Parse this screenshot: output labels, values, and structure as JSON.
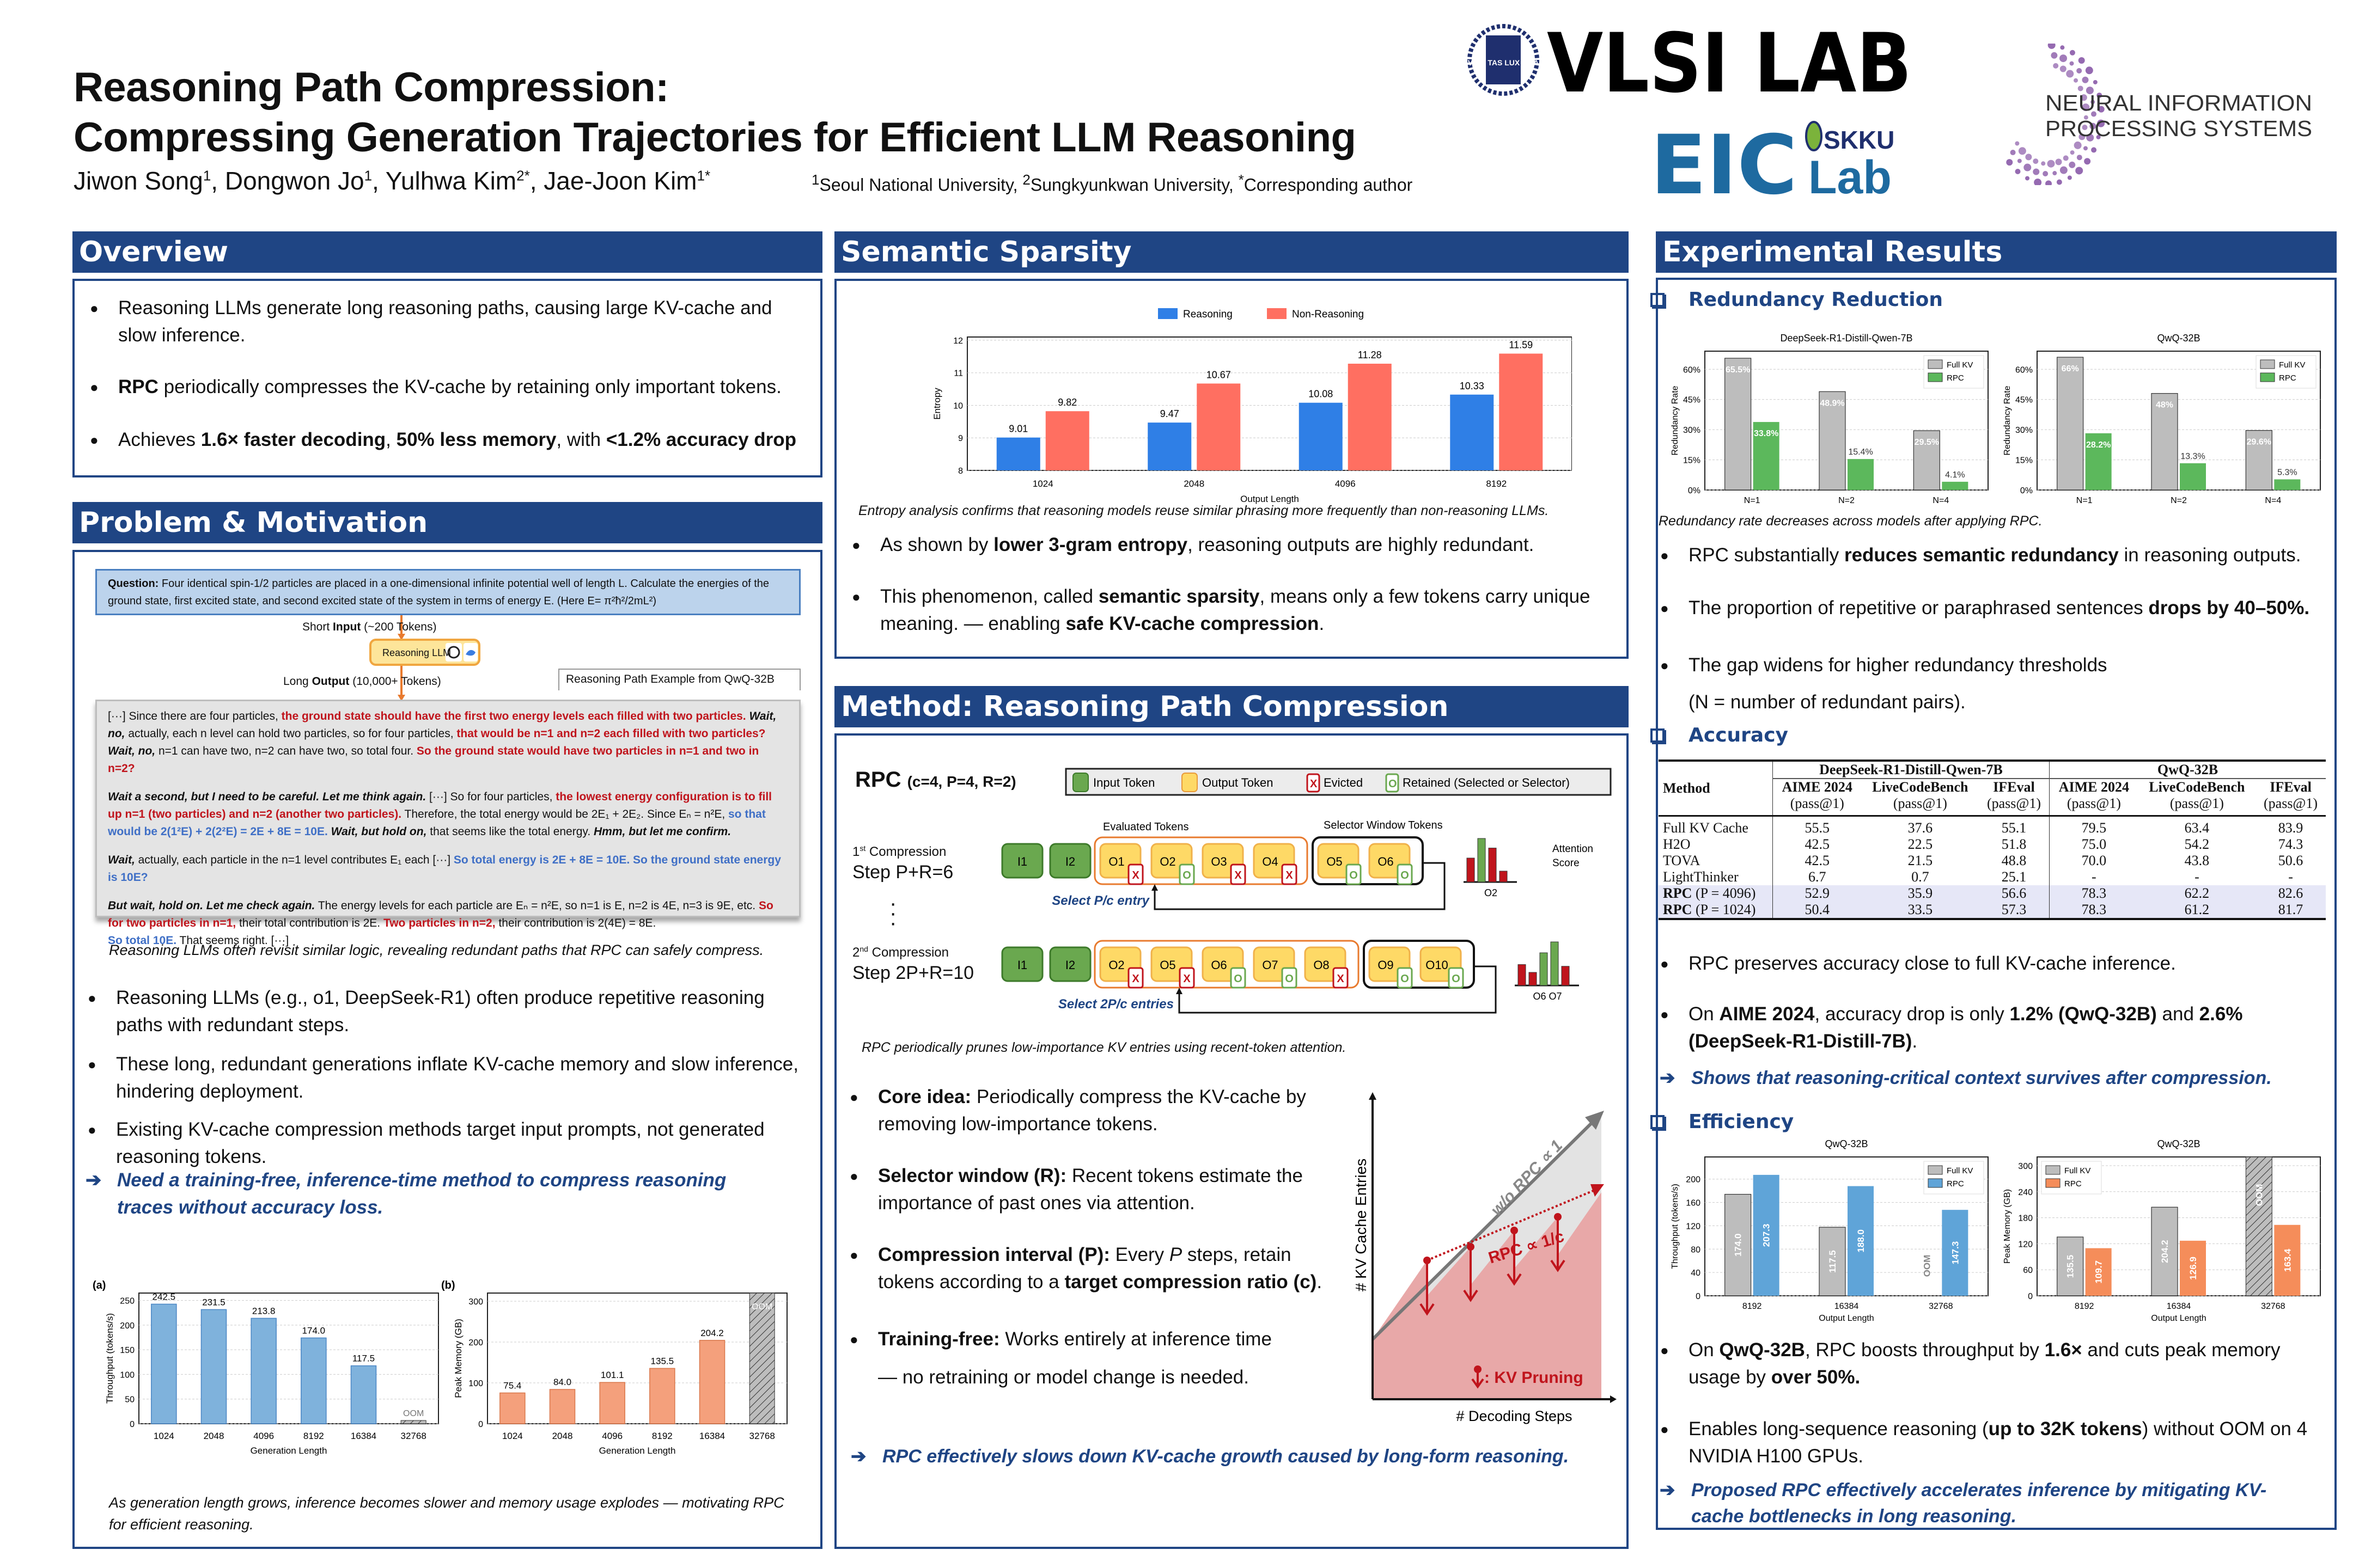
{
  "header": {
    "title_line1": "Reasoning Path Compression:",
    "title_line2": "Compressing Generation Trajectories for Efficient LLM Reasoning",
    "authors": [
      {
        "name": "Jiwon Song",
        "sup": "1"
      },
      {
        "name": "Dongwon Jo",
        "sup": "1"
      },
      {
        "name": "Yulhwa Kim",
        "sup": "2*"
      },
      {
        "name": "Jae-Joon Kim",
        "sup": "1*"
      }
    ],
    "affiliations": [
      {
        "sup": "1",
        "text": "Seoul National University, "
      },
      {
        "sup": "2",
        "text": "Sungkyunkwan University, "
      },
      {
        "sup": "*",
        "text": "Corresponding author"
      }
    ],
    "logos": {
      "vlsi": "VLSI LAB",
      "vlsi_seal": "VERI TAS LUX MEA",
      "eic": "EIC",
      "eic_sub1": "SKKU",
      "eic_sub2": "Lab",
      "neurips_line1": "NEURAL INFORMATION",
      "neurips_line2": "PROCESSING SYSTEMS"
    }
  },
  "overview": {
    "title": "Overview",
    "bullets": [
      {
        "pre": "Reasoning LLMs generate long reasoning paths, causing large KV-cache and slow inference."
      },
      {
        "bold": "RPC",
        "post": " periodically compresses the KV-cache by retaining only important tokens."
      },
      {
        "pre": "Achieves ",
        "b1": "1.6× faster decoding",
        "mid1": ", ",
        "b2": "50% less memory",
        "mid2": ", with ",
        "b3": "<1.2% accuracy drop"
      }
    ]
  },
  "problem": {
    "title": "Problem & Motivation",
    "question_label": "Question:",
    "question": " Four identical spin-1/2 particles are placed in a one-dimensional infinite potential well of length L. Calculate the energies of the ground state, first excited state, and second excited state of the system in terms of energy E. (Here E= π²ħ²/2mL²)",
    "short_input_pre": "Short ",
    "short_input_bold": "Input",
    "short_input_post": " (~200 Tokens)",
    "llm_label": "Reasoning LLM",
    "long_output_pre": "Long ",
    "long_output_bold": "Output",
    "long_output_post": " (10,000+ Tokens)",
    "example_label": "Reasoning Path Example from QwQ-32B",
    "para1": [
      {
        "t": "[···] Since there are four particles, ",
        "s": "n"
      },
      {
        "t": "the ground state should have the first two energy levels each filled with two particles.",
        "s": "r"
      },
      {
        "t": " Wait, no,",
        "s": "bi"
      },
      {
        "t": " actually, each n level can hold two particles, so for four particles, ",
        "s": "n"
      },
      {
        "t": "that would be n=1 and n=2 each filled with two particles?",
        "s": "r"
      },
      {
        "t": " Wait, no,",
        "s": "bi"
      },
      {
        "t": " n=1 can have two, n=2 can have two, so total four. ",
        "s": "n"
      },
      {
        "t": "So the ground state would have two particles in n=1 and two in n=2?",
        "s": "r"
      }
    ],
    "para2": [
      {
        "t": "Wait a second, but I need to be careful. Let me think again.",
        "s": "bi"
      },
      {
        "t": " [···] So for four particles, ",
        "s": "n"
      },
      {
        "t": "the lowest energy configuration is to fill up n=1 (two particles) and n=2 (another two particles).",
        "s": "r"
      },
      {
        "t": " Therefore, the total energy would be 2E₁ + 2E₂. Since Eₙ = n²E, ",
        "s": "n"
      },
      {
        "t": "so that would be 2(1²E) + 2(2²E) = 2E + 8E = 10E.",
        "s": "b"
      },
      {
        "t": " Wait, but hold on,",
        "s": "bi"
      },
      {
        "t": " that seems like the total energy. ",
        "s": "n"
      },
      {
        "t": "Hmm, but let me confirm.",
        "s": "bi"
      }
    ],
    "para3": [
      {
        "t": "Wait,",
        "s": "bi"
      },
      {
        "t": " actually, each particle in the n=1 level contributes E₁ each [···] ",
        "s": "n"
      },
      {
        "t": "So total energy is 2E + 8E = 10E. So the ground state energy is 10E?",
        "s": "b"
      }
    ],
    "para4": [
      {
        "t": "But wait, hold on. Let me check again.",
        "s": "bi"
      },
      {
        "t": " The energy levels for each particle are Eₙ = n²E, so n=1 is E, n=2 is 4E, n=3 is 9E, etc. ",
        "s": "n"
      },
      {
        "t": "So for two particles in n=1,",
        "s": "r"
      },
      {
        "t": " their total contribution is 2E. ",
        "s": "n"
      },
      {
        "t": "Two particles in n=2,",
        "s": "r"
      },
      {
        "t": " their contribution is 2(4E) = 8E.",
        "s": "n"
      }
    ],
    "para5": [
      {
        "t": "So total 10E.",
        "s": "b"
      },
      {
        "t": " That seems right. [···]",
        "s": "n"
      }
    ],
    "figure_caption": "Reasoning LLMs often revisit similar logic, revealing redundant paths that RPC can safely compress.",
    "bullets": [
      "Reasoning LLMs (e.g., o1, DeepSeek-R1) often produce repetitive reasoning paths with redundant steps.",
      "These long, redundant generations inflate KV-cache memory and slow inference, hindering deployment.",
      "Existing KV-cache compression methods target input prompts, not generated reasoning tokens."
    ],
    "conclusion": "Need a training-free, inference-time method to compress reasoning traces without accuracy loss.",
    "bottom_caption": "As generation length grows, inference becomes slower and memory usage explodes — motivating RPC for efficient reasoning."
  },
  "semantic": {
    "title": "Semantic Sparsity",
    "caption": "Entropy analysis confirms that reasoning models reuse similar phrasing more frequently than non-reasoning LLMs.",
    "b1_pre": "As shown by ",
    "b1_bold": "lower 3-gram entropy",
    "b1_post": ", reasoning outputs are highly redundant.",
    "b2_pre": "This phenomenon, called ",
    "b2_bold": "semantic sparsity",
    "b2_mid": ", means only a few tokens carry unique meaning. — enabling ",
    "b2_bold2": "safe KV-cache compression",
    "b2_post": "."
  },
  "method": {
    "title": "Method: Reasoning Path Compression",
    "rpc_label": "RPC",
    "rpc_params": "(c=4, P=4, R=2)",
    "legend": {
      "input": "Input Token",
      "output": "Output Token",
      "evicted": "Evicted",
      "retained": "Retained (Selected or Selector)"
    },
    "evaluated_label": "Evaluated Tokens",
    "selector_label": "Selector Window Tokens",
    "attention_label1": "Attention",
    "attention_label2": "Score",
    "step1_sup": "st",
    "step1_line1": "1",
    "step1_line1b": " Compression",
    "step1_line2": "Step P+R=6",
    "step2_sup": "nd",
    "step2_line1": "2",
    "step2_line1b": " Compression",
    "step2_line2": "Step 2P+R=10",
    "row1_inputs": [
      "I1",
      "I2"
    ],
    "row1_evaluated": [
      {
        "t": "O1",
        "m": "X"
      },
      {
        "t": "O2",
        "m": "O"
      },
      {
        "t": "O3",
        "m": "X"
      },
      {
        "t": "O4",
        "m": "X"
      }
    ],
    "row1_selector": [
      {
        "t": "O5",
        "m": "O"
      },
      {
        "t": "O6",
        "m": "O"
      }
    ],
    "row1_select_label": "Select P/c entry",
    "row1_attn_label": "O2",
    "row1_attn": [
      0.55,
      1.0,
      0.78,
      0.25
    ],
    "row2_inputs": [
      "I1",
      "I2"
    ],
    "row2_evaluated": [
      {
        "t": "O2",
        "m": "X"
      },
      {
        "t": "O5",
        "m": "X"
      },
      {
        "t": "O6",
        "m": "O"
      },
      {
        "t": "O7",
        "m": "O"
      },
      {
        "t": "O8",
        "m": "X"
      }
    ],
    "row2_selector": [
      {
        "t": "O9",
        "m": "O"
      },
      {
        "t": "O10",
        "m": "O"
      }
    ],
    "row2_select_label": "Select 2P/c entries",
    "row2_attn_label": "O6 O7",
    "row2_attn": [
      0.48,
      0.3,
      0.75,
      1.0,
      0.44
    ],
    "diagram_caption": "RPC periodically prunes low-importance KV entries using recent-token attention.",
    "bullets": [
      {
        "bold": "Core idea:",
        "text": " Periodically compress the KV-cache by removing low-importance tokens."
      },
      {
        "bold": "Selector window (R):",
        "text": " Recent tokens estimate the importance of past ones via attention."
      },
      {
        "bold": "Compression interval (P):",
        "text": " Every ",
        "ital": "P",
        "text2": " steps, retain tokens according to a ",
        "bold2": "target compression ratio (c)",
        "text3": "."
      },
      {
        "bold": "Training-free:",
        "text": " Works entirely at inference time",
        "line2": "— no retraining or model change is needed."
      }
    ],
    "growth": {
      "ylabel": "# KV Cache Entries",
      "xlabel": "# Decoding Steps",
      "wo_label": "w/o RPC ∝ 1",
      "rpc_label": "RPC ∝ 1/c",
      "prune_label": ": KV Pruning"
    },
    "conclusion": "RPC effectively slows down KV-cache growth caused by long-form reasoning."
  },
  "results": {
    "title": "Experimental Results",
    "redundancy_title": "Redundancy Reduction",
    "redundancy_caption": "Redundancy rate decreases across models after applying RPC.",
    "redundancy_bullets": [
      {
        "pre": "RPC substantially ",
        "bold": "reduces semantic redundancy",
        "post": " in reasoning outputs."
      },
      {
        "pre": "The proportion of repetitive or paraphrased sentences ",
        "bold": "drops by 40–50%.",
        "post": ""
      },
      {
        "pre": "The gap widens for higher redundancy thresholds",
        "bold": "",
        "post": "",
        "line2": "(N = number of redundant pairs)."
      }
    ],
    "accuracy_title": "Accuracy",
    "table": {
      "method_header": "Method",
      "groups": [
        "DeepSeek-R1-Distill-Qwen-7B",
        "QwQ-32B"
      ],
      "columns": [
        "AIME 2024",
        "LiveCodeBench",
        "IFEval",
        "AIME 2024",
        "LiveCodeBench",
        "IFEval"
      ],
      "metric": "(pass@1)",
      "rows": [
        {
          "method": "Full KV Cache",
          "values": [
            "55.5",
            "37.6",
            "55.1",
            "79.5",
            "63.4",
            "83.9"
          ]
        },
        {
          "method": "H2O",
          "values": [
            "42.5",
            "22.5",
            "51.8",
            "75.0",
            "54.2",
            "74.3"
          ]
        },
        {
          "method": "TOVA",
          "values": [
            "42.5",
            "21.5",
            "48.8",
            "70.0",
            "43.8",
            "50.6"
          ]
        },
        {
          "method": "LightThinker",
          "values": [
            "6.7",
            "0.7",
            "25.1",
            "-",
            "-",
            "-"
          ]
        },
        {
          "method": "RPC",
          "param": "(P = 4096)",
          "values": [
            "52.9",
            "35.9",
            "56.6",
            "78.3",
            "62.2",
            "82.6"
          ],
          "highlight": true
        },
        {
          "method": "RPC",
          "param": "(P = 1024)",
          "values": [
            "50.4",
            "33.5",
            "57.3",
            "78.3",
            "61.2",
            "81.7"
          ],
          "highlight": true
        }
      ]
    },
    "accuracy_bullets": {
      "b1": "RPC preserves accuracy close to full KV-cache inference.",
      "b2_pre": "On ",
      "b2_bold1": "AIME 2024",
      "b2_mid": ", accuracy drop is only ",
      "b2_bold2": "1.2% (QwQ-32B)",
      "b2_mid2": " and ",
      "b2_bold3": "2.6% (DeepSeek-R1-Distill-7B)",
      "b2_post": "."
    },
    "accuracy_conclusion": "Shows that reasoning-critical context survives after compression.",
    "efficiency_title": "Efficiency",
    "efficiency_bullets": {
      "b1_pre": "On ",
      "b1_bold1": "QwQ-32B",
      "b1_mid": ", RPC boosts throughput by ",
      "b1_bold2": "1.6×",
      "b1_mid2": " and cuts peak memory usage by ",
      "b1_bold3": "over 50%.",
      "b2_pre": "Enables long-sequence reasoning (",
      "b2_bold": "up to 32K tokens",
      "b2_post": ") without OOM on 4 NVIDIA H100 GPUs."
    },
    "efficiency_conclusion": "Proposed RPC effectively accelerates inference by mitigating KV-cache bottlenecks in long reasoning."
  },
  "colors": {
    "navy": "#1f4584",
    "reasoning_blue": "#2f7fe6",
    "nonreasoning_red": "#ff6f61",
    "gray": "#bdbdbd",
    "green": "#5cb85c",
    "light_blue": "#5fa4d8",
    "orange": "#f58d5a",
    "peach": "#f4a07c",
    "bar_blue": "#7fb2dc"
  },
  "chart_data": [
    {
      "id": "throughput_a",
      "type": "bar",
      "panel_label": "(a)",
      "categories": [
        "1024",
        "2048",
        "4096",
        "8192",
        "16384",
        "32768"
      ],
      "values": [
        242.5,
        231.5,
        213.8,
        174.0,
        117.5,
        null
      ],
      "labels": [
        "242.5",
        "231.5",
        "213.8",
        "174.0",
        "117.5",
        "OOM"
      ],
      "xlabel": "Generation Length",
      "ylabel": "Throughput (tokens/s)",
      "ylim": [
        0,
        265
      ],
      "yticks": [
        0,
        50,
        100,
        150,
        200,
        250
      ]
    },
    {
      "id": "memory_b",
      "type": "bar",
      "panel_label": "(b)",
      "categories": [
        "1024",
        "2048",
        "4096",
        "8192",
        "16384",
        "32768"
      ],
      "values": [
        75.4,
        84.0,
        101.1,
        135.5,
        204.2,
        null
      ],
      "labels": [
        "75.4",
        "84.0",
        "101.1",
        "135.5",
        "204.2",
        "OOM"
      ],
      "xlabel": "Generation Length",
      "ylabel": "Peak Memory (GB)",
      "ylim": [
        0,
        320
      ],
      "yticks": [
        0,
        100,
        200,
        300
      ]
    },
    {
      "id": "entropy",
      "type": "bar",
      "categories": [
        "1024",
        "2048",
        "4096",
        "8192"
      ],
      "series": [
        {
          "name": "Reasoning",
          "values": [
            9.01,
            9.47,
            10.08,
            10.33
          ]
        },
        {
          "name": "Non-Reasoning",
          "values": [
            9.82,
            10.67,
            11.28,
            11.59
          ]
        }
      ],
      "xlabel": "Output Length",
      "ylabel": "Entropy",
      "ylim": [
        8,
        12.1
      ],
      "yticks": [
        8,
        9,
        10,
        11,
        12
      ],
      "legend": "top"
    },
    {
      "id": "redundancy_ds",
      "type": "bar",
      "title": "DeepSeek-R1-Distill-Qwen-7B",
      "categories": [
        "N=1",
        "N=2",
        "N=4"
      ],
      "series": [
        {
          "name": "Full KV",
          "values": [
            65.5,
            48.9,
            29.5
          ]
        },
        {
          "name": "RPC",
          "values": [
            33.8,
            15.4,
            4.1
          ]
        }
      ],
      "ylabel": "Redundancy Rate",
      "ylim": [
        0,
        69
      ],
      "yticks": [
        "0%",
        "15%",
        "30%",
        "45%",
        "60%"
      ],
      "legend": "top-right"
    },
    {
      "id": "redundancy_qwq",
      "type": "bar",
      "title": "QwQ-32B",
      "categories": [
        "N=1",
        "N=2",
        "N=4"
      ],
      "series": [
        {
          "name": "Full KV",
          "values": [
            66.0,
            48.0,
            29.6
          ]
        },
        {
          "name": "RPC",
          "values": [
            28.2,
            13.3,
            5.3
          ]
        }
      ],
      "ylabel": "Redundancy Rate",
      "ylim": [
        0,
        69
      ],
      "yticks": [
        "0%",
        "15%",
        "30%",
        "45%",
        "60%"
      ],
      "legend": "top-right"
    },
    {
      "id": "eff_throughput",
      "type": "bar",
      "title": "QwQ-32B",
      "categories": [
        "8192",
        "16384",
        "32768"
      ],
      "series": [
        {
          "name": "Full KV",
          "values": [
            174.0,
            117.5,
            null
          ],
          "labels": [
            "174.0",
            "117.5",
            "OOM"
          ]
        },
        {
          "name": "RPC",
          "values": [
            207.3,
            188.0,
            147.3
          ],
          "labels": [
            "207.3",
            "188.0",
            "147.3"
          ]
        }
      ],
      "xlabel": "Output Length",
      "ylabel": "Throughput (tokens/s)",
      "ylim": [
        0,
        238
      ],
      "yticks": [
        0,
        40,
        80,
        120,
        160,
        200
      ],
      "legend": "top-right"
    },
    {
      "id": "eff_memory",
      "type": "bar",
      "title": "QwQ-32B",
      "categories": [
        "8192",
        "16384",
        "32768"
      ],
      "series": [
        {
          "name": "Full KV",
          "values": [
            135.5,
            204.2,
            null
          ],
          "labels": [
            "135.5",
            "204.2",
            "OOM"
          ]
        },
        {
          "name": "RPC",
          "values": [
            109.7,
            126.9,
            163.4
          ],
          "labels": [
            "109.7",
            "126.9",
            "163.4"
          ]
        }
      ],
      "xlabel": "Output Length",
      "ylabel": "Peak Memory (GB)",
      "ylim": [
        0,
        320
      ],
      "yticks": [
        0,
        60,
        120,
        180,
        240,
        300
      ],
      "legend": "top-left"
    }
  ]
}
